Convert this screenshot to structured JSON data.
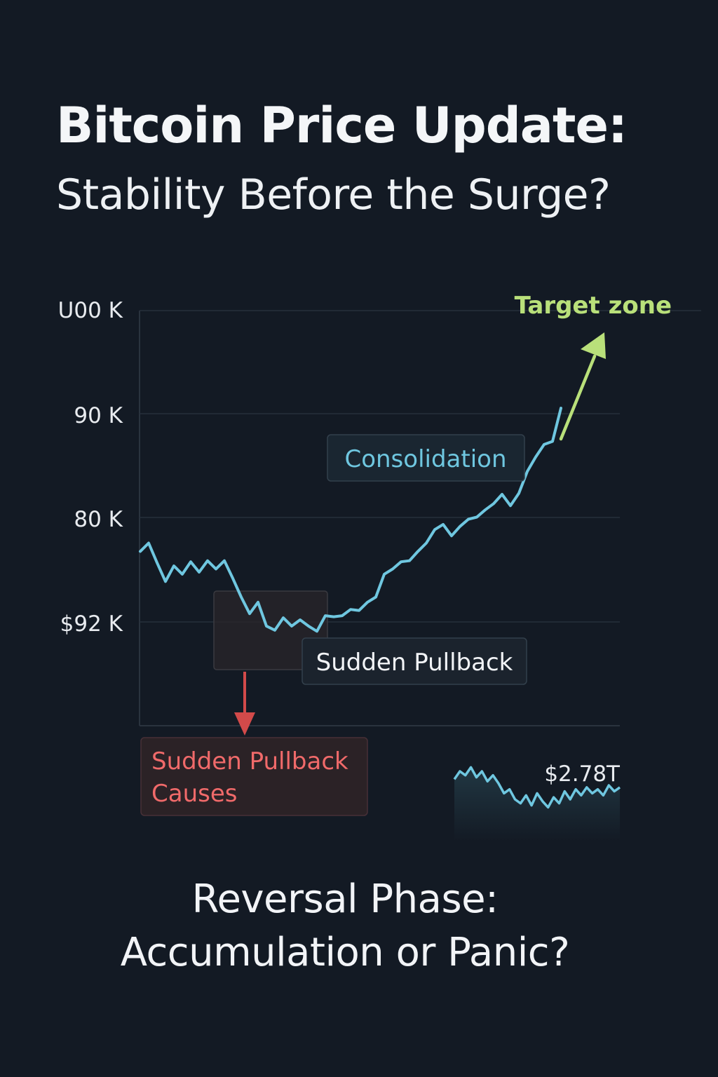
{
  "header": {
    "title": "Bitcoin Price Update:",
    "subtitle": "Stability Before the Surge?"
  },
  "footer": {
    "line1": "Reversal Phase:",
    "line2": "Accumulation or Panic?"
  },
  "colors": {
    "background": "#131a24",
    "price_line": "#6fc7e0",
    "target_arrow": "#b9e07a",
    "pullback_arrow": "#d24a4a",
    "pullback_text": "#f06a6a",
    "gridline": "#26303b"
  },
  "chart_data": [
    {
      "type": "line",
      "title": "",
      "y_tick_labels": [
        "U00 K",
        "90 K",
        "80 K",
        "$92 K"
      ],
      "grid": true,
      "series": [
        {
          "values": [
            76.8,
            77.6,
            75.7,
            73.9,
            75.4,
            74.6,
            75.8,
            74.8,
            75.9,
            75.1,
            75.9,
            74.2,
            72.4,
            70.8,
            71.9,
            69.6,
            69.2,
            70.4,
            69.6,
            70.2,
            69.6,
            69.1,
            70.6,
            70.5,
            70.6,
            71.2,
            71.1,
            71.9,
            72.4,
            74.6,
            75.1,
            75.8,
            75.9,
            76.8,
            77.6,
            78.9,
            79.4,
            78.3,
            79.2,
            79.9,
            80.1,
            80.8,
            81.4,
            82.3,
            81.2,
            82.4,
            84.5,
            85.9,
            87.1,
            87.4,
            90.6
          ]
        }
      ],
      "annotations": [
        {
          "label": "Consolidation",
          "color": "#6fc7e0"
        },
        {
          "label": "Sudden Pullback",
          "color": "#f2f4f7"
        },
        {
          "label": "Sudden Pullback Causes",
          "lines": [
            "Sudden Pullback",
            "Causes"
          ],
          "color": "#f06a6a"
        },
        {
          "label": "Target zone",
          "color": "#b9e07a"
        }
      ]
    },
    {
      "type": "area",
      "title": "",
      "value_label": "$2.78T",
      "series": [
        {
          "values": [
            3.1,
            3.5,
            3.3,
            3.7,
            3.2,
            3.5,
            3.0,
            3.3,
            2.9,
            2.4,
            2.6,
            2.1,
            1.9,
            2.3,
            1.8,
            2.4,
            2.0,
            1.7,
            2.2,
            1.9,
            2.5,
            2.1,
            2.6,
            2.3,
            2.7,
            2.4,
            2.6,
            2.3,
            2.8,
            2.5,
            2.7
          ]
        }
      ]
    }
  ]
}
